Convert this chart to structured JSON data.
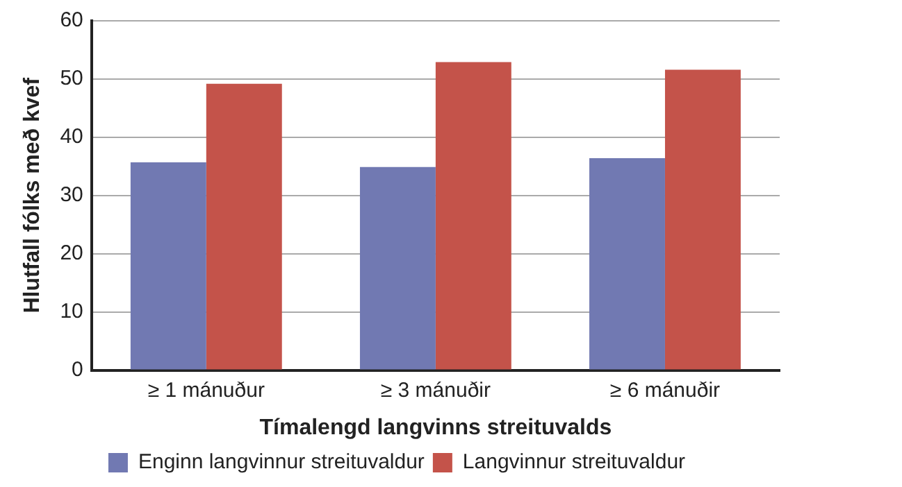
{
  "chart_data": {
    "type": "bar",
    "xlabel": "Tímalengd langvinns streituvalds",
    "ylabel": "Hlutfall fólks með kvef",
    "categories": [
      "≥ 1 mánuður",
      "≥ 3 mánuðir",
      "≥ 6 mánuðir"
    ],
    "series": [
      {
        "name": "Enginn langvinnur streituvaldur",
        "color": "#7179b2",
        "values": [
          35.7,
          34.9,
          36.4
        ]
      },
      {
        "name": "Langvinnur streituvaldur",
        "color": "#c4534a",
        "values": [
          49.2,
          52.9,
          51.6
        ]
      }
    ],
    "ylim": [
      0,
      60
    ],
    "yticks": [
      0,
      10,
      20,
      30,
      40,
      50,
      60
    ],
    "grid": "y",
    "legend": "bottom"
  }
}
